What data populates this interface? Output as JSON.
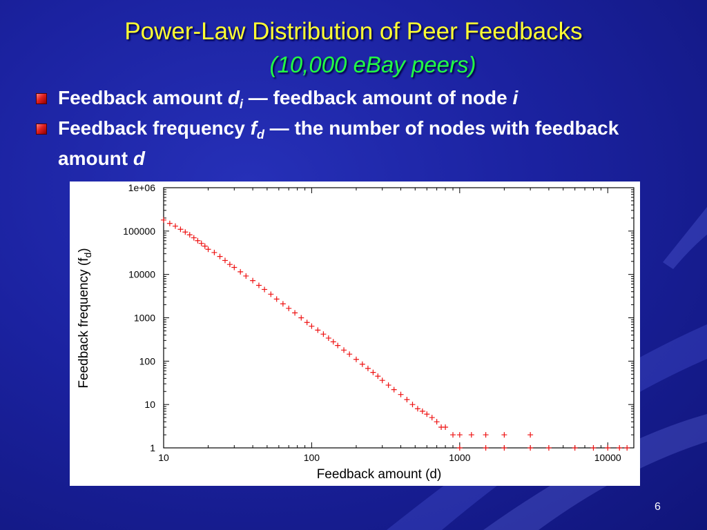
{
  "slide": {
    "title": "Power-Law Distribution of Peer Feedbacks",
    "subtitle": "(10,000 eBay peers)",
    "page_number": "6"
  },
  "bullets": [
    {
      "lead": "Feedback amount ",
      "var": "d",
      "sub": "i",
      "rest": " — feedback amount of node ",
      "tail_var": "i"
    },
    {
      "lead": "Feedback frequency ",
      "var": "f",
      "sub": "d",
      "rest": " —  the number of nodes with feedback amount ",
      "tail_var": "d"
    }
  ],
  "colors": {
    "title": "#ffff33",
    "subtitle": "#22ff44",
    "body_text": "#ffffff",
    "background": "#1b22a0",
    "marker": "#ee1111",
    "bullet": "#e02020"
  },
  "chart_data": {
    "type": "scatter",
    "marker": "plus",
    "xlabel": "Feedback amount (d)",
    "ylabel": "Feedback frequency (f_d)",
    "ylabel_main": "Feedback frequency (f",
    "ylabel_sub": "d",
    "ylabel_end": ")",
    "xscale": "log",
    "yscale": "log",
    "xlim": [
      10,
      15000
    ],
    "ylim": [
      1,
      1000000
    ],
    "x_ticks": [
      {
        "value": 10,
        "label": "10"
      },
      {
        "value": 100,
        "label": "100"
      },
      {
        "value": 1000,
        "label": "1000"
      },
      {
        "value": 10000,
        "label": "10000"
      }
    ],
    "y_ticks": [
      {
        "value": 1,
        "label": "1"
      },
      {
        "value": 10,
        "label": "10"
      },
      {
        "value": 100,
        "label": "100"
      },
      {
        "value": 1000,
        "label": "1000"
      },
      {
        "value": 10000,
        "label": "10000"
      },
      {
        "value": 100000,
        "label": "100000"
      },
      {
        "value": 1000000,
        "label": "1e+06"
      }
    ],
    "grid": false,
    "legend": "none",
    "points": [
      [
        10,
        180000
      ],
      [
        11,
        150000
      ],
      [
        12,
        130000
      ],
      [
        13,
        110000
      ],
      [
        14,
        95000
      ],
      [
        15,
        82000
      ],
      [
        16,
        70000
      ],
      [
        17,
        60000
      ],
      [
        18,
        52000
      ],
      [
        19,
        45000
      ],
      [
        20,
        38000
      ],
      [
        22,
        32000
      ],
      [
        24,
        26000
      ],
      [
        26,
        21000
      ],
      [
        28,
        17000
      ],
      [
        30,
        14500
      ],
      [
        33,
        11500
      ],
      [
        36,
        9200
      ],
      [
        40,
        7200
      ],
      [
        44,
        5600
      ],
      [
        48,
        4500
      ],
      [
        53,
        3500
      ],
      [
        58,
        2700
      ],
      [
        64,
        2100
      ],
      [
        70,
        1650
      ],
      [
        77,
        1300
      ],
      [
        85,
        1000
      ],
      [
        93,
        780
      ],
      [
        100,
        640
      ],
      [
        110,
        520
      ],
      [
        120,
        420
      ],
      [
        130,
        340
      ],
      [
        140,
        280
      ],
      [
        150,
        230
      ],
      [
        165,
        180
      ],
      [
        180,
        145
      ],
      [
        200,
        110
      ],
      [
        220,
        85
      ],
      [
        240,
        68
      ],
      [
        260,
        55
      ],
      [
        280,
        45
      ],
      [
        300,
        36
      ],
      [
        330,
        28
      ],
      [
        360,
        22
      ],
      [
        400,
        17
      ],
      [
        440,
        13
      ],
      [
        480,
        10
      ],
      [
        520,
        8
      ],
      [
        560,
        7
      ],
      [
        600,
        6
      ],
      [
        650,
        5
      ],
      [
        700,
        4
      ],
      [
        750,
        3
      ],
      [
        800,
        3
      ],
      [
        900,
        2
      ],
      [
        1000,
        2
      ],
      [
        1200,
        2
      ],
      [
        1500,
        2
      ],
      [
        2000,
        2
      ],
      [
        3000,
        2
      ],
      [
        1000,
        1
      ],
      [
        1500,
        1
      ],
      [
        2000,
        1
      ],
      [
        3000,
        1
      ],
      [
        4000,
        1
      ],
      [
        6000,
        1
      ],
      [
        8000,
        1
      ],
      [
        10000,
        1
      ],
      [
        12000,
        1
      ],
      [
        13500,
        1
      ]
    ]
  }
}
